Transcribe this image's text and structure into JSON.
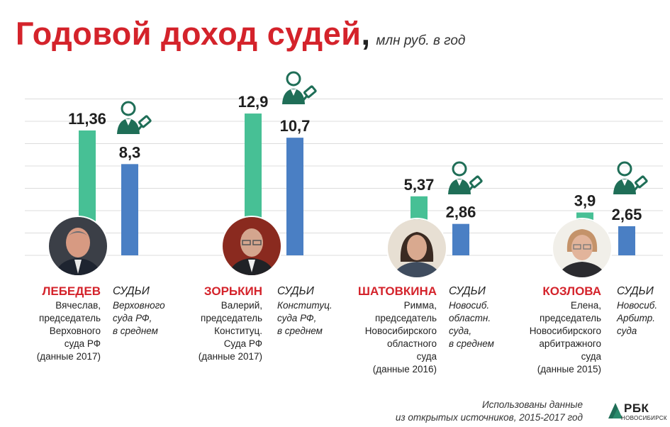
{
  "title": "Годовой доход судей",
  "title_suffix": ",",
  "unit": "млн руб. в год",
  "colors": {
    "judge_bar": "#47c095",
    "average_bar": "#4a7fc4",
    "title": "#d4232b",
    "accent_icon": "#1f6e57"
  },
  "chart_data": {
    "type": "bar",
    "title": "Годовой доход судей",
    "ylabel": "млн руб. в год",
    "grid": true,
    "categories": [
      "ЛЕБЕДЕВ",
      "ЗОРЬКИН",
      "ШАТОВКИНА",
      "КОЗЛОВА"
    ],
    "series": [
      {
        "color": "#47c095",
        "values": [
          11.36,
          12.9,
          5.37,
          3.9
        ],
        "labels": [
          "11,36",
          "12,9",
          "5,37",
          "3,9"
        ]
      },
      {
        "color": "#4a7fc4",
        "values": [
          8.3,
          10.7,
          2.86,
          2.65
        ],
        "labels": [
          "8,3",
          "10,7",
          "2,86",
          "2,65"
        ]
      }
    ]
  },
  "groups": [
    {
      "judge": {
        "name": "ЛЕБЕДЕВ",
        "lines": [
          "Вячеслав,",
          "председатель",
          "Верховного",
          "суда РФ",
          "(данные 2017)"
        ]
      },
      "average": {
        "head": "СУДЬИ",
        "lines": [
          "Верховного",
          "суда РФ,",
          "в среднем"
        ]
      }
    },
    {
      "judge": {
        "name": "ЗОРЬКИН",
        "lines": [
          "Валерий,",
          "председатель",
          "Конституц.",
          "Суда РФ",
          "(данные 2017)"
        ]
      },
      "average": {
        "head": "СУДЬИ",
        "lines": [
          "Конституц.",
          "суда РФ,",
          "в среднем"
        ]
      }
    },
    {
      "judge": {
        "name": "ШАТОВКИНА",
        "lines": [
          "Римма,",
          "председатель",
          "Новосибирского",
          "областного",
          "суда",
          "(данные 2016)"
        ]
      },
      "average": {
        "head": "СУДЬИ",
        "lines": [
          "Новосиб.",
          "областн.",
          "суда,",
          "в среднем"
        ]
      }
    },
    {
      "judge": {
        "name": "КОЗЛОВА",
        "lines": [
          "Елена,",
          "председатель",
          "Новосибирского",
          "арбитражного",
          "суда",
          "(данные 2015)"
        ]
      },
      "average": {
        "head": "СУДЬИ",
        "lines": [
          "Новосиб.",
          "Арбитр.",
          "суда"
        ]
      }
    }
  ],
  "footnote": [
    "Использованы данные",
    "из открытых источников, 2015-2017 год"
  ],
  "logo": {
    "name": "РБК",
    "city": "НОВОСИБИРСК",
    "icon": "rbc-logo-icon"
  }
}
